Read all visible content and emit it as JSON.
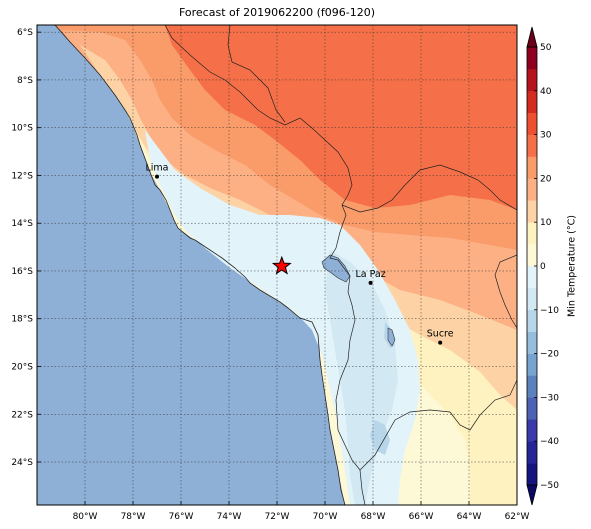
{
  "title": "Forecast of 2019062200 (f096-120)",
  "map": {
    "lon_range": [
      -82,
      -62
    ],
    "lat_range": [
      -25.8,
      -5.7
    ],
    "lon_ticks": [
      "80°W",
      "78°W",
      "76°W",
      "74°W",
      "72°W",
      "70°W",
      "68°W",
      "66°W",
      "64°W",
      "62°W"
    ],
    "lat_ticks": [
      "6°S",
      "8°S",
      "10°S",
      "12°S",
      "14°S",
      "16°S",
      "18°S",
      "20°S",
      "22°S",
      "24°S"
    ],
    "ocean_color": "#8eb0d6",
    "grid": true,
    "marker": {
      "symbol": "star",
      "lon": -71.8,
      "lat": -15.8,
      "color": "#ff0000"
    },
    "cities": [
      {
        "name": "Lima",
        "lon": -77.0,
        "lat": -12.05
      },
      {
        "name": "La Paz",
        "lon": -68.1,
        "lat": -16.5
      },
      {
        "name": "Sucre",
        "lon": -65.2,
        "lat": -19.0
      }
    ]
  },
  "colorbar": {
    "label": "Min Temperature (°C)",
    "ticks": [
      "50",
      "40",
      "30",
      "20",
      "10",
      "0",
      "−10",
      "−20",
      "−30",
      "−40",
      "−50"
    ],
    "colors": {
      "lt_-50": "#0a0a66",
      "-50_-45": "#15157f",
      "-45_-40": "#252596",
      "-40_-35": "#3a3aaa",
      "-35_-30": "#4e62b4",
      "-30_-25": "#5c82bd",
      "-25_-20": "#76a3cf",
      "-20_-15": "#97bddc",
      "-15_-10": "#b8d6ea",
      "-10_-5": "#d2e8f3",
      "-5_0": "#e2f3f9",
      "0_5": "#fdf8d6",
      "5_10": "#fef2c0",
      "10_15": "#fdd3a5",
      "15_20": "#fcb084",
      "20_25": "#fa9c6a",
      "25_30": "#f57048",
      "30_35": "#ed5030",
      "35_40": "#d32b20",
      "40_45": "#b4141e",
      "45_50": "#8f0020",
      "gt_50": "#6b0018"
    }
  }
}
